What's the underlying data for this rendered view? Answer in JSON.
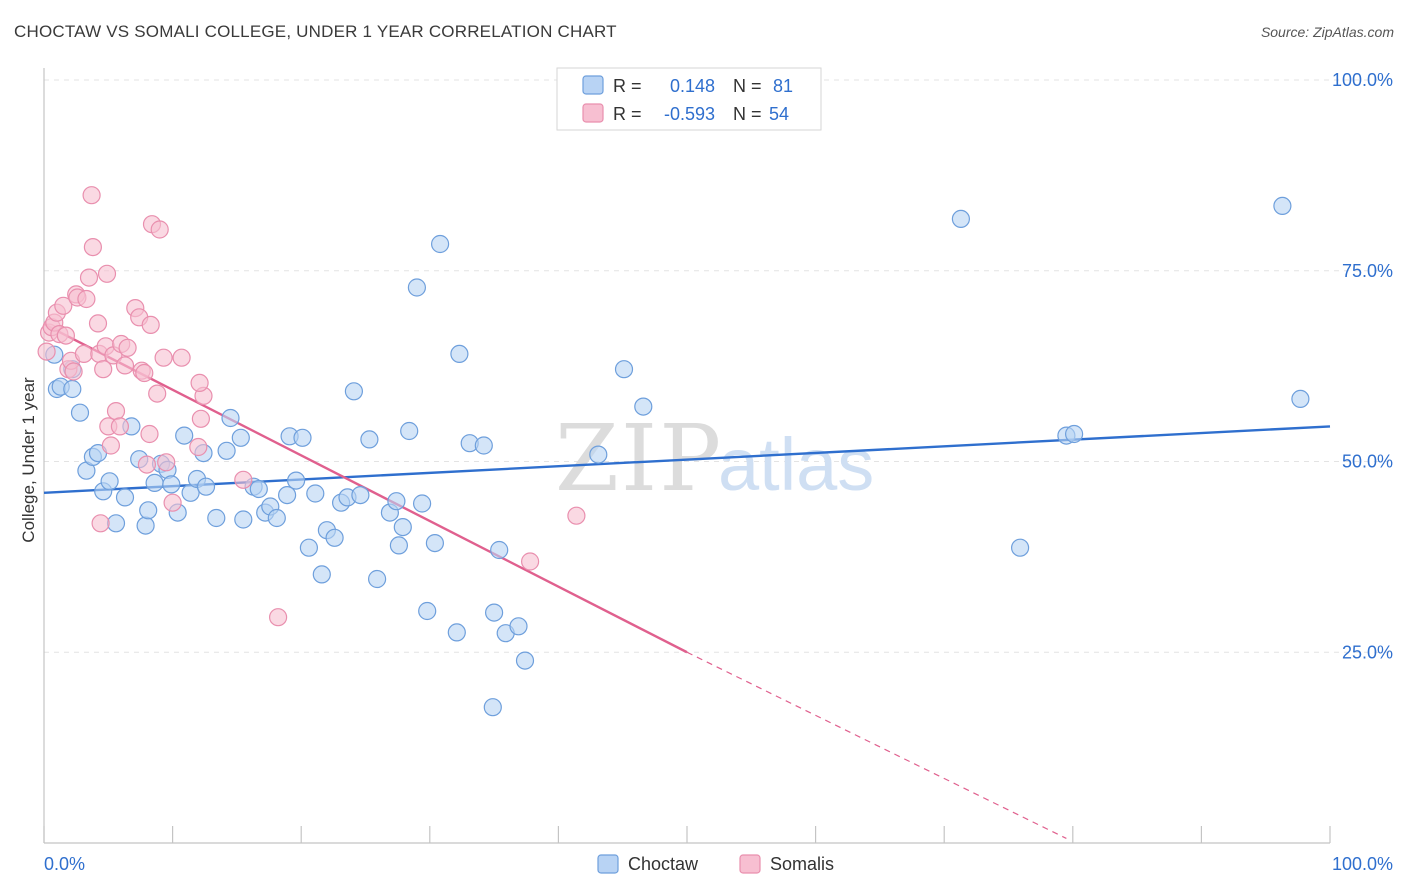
{
  "header": {
    "title": "CHOCTAW VS SOMALI COLLEGE, UNDER 1 YEAR CORRELATION CHART",
    "source": "Source: ZipAtlas.com"
  },
  "watermark": {
    "zip": "ZIP",
    "atlas": "atlas"
  },
  "colors": {
    "choctaw_fill": "#b8d3f4",
    "choctaw_stroke": "#6e9fdc",
    "choctaw_line": "#2f6fce",
    "somali_fill": "#f7bfd1",
    "somali_stroke": "#e98fae",
    "somali_line": "#e0608e",
    "value_text": "#2f6fce",
    "grid": "#e3e3e3"
  },
  "legend_top": {
    "rows": [
      {
        "swatch": "choctaw",
        "r_label": "R =",
        "r_value": "0.148",
        "n_label": "N =",
        "n_value": "81"
      },
      {
        "swatch": "somali",
        "r_label": "R =",
        "r_value": "-0.593",
        "n_label": "N =",
        "n_value": "54"
      }
    ]
  },
  "legend_bottom": {
    "items": [
      {
        "swatch": "choctaw",
        "label": "Choctaw"
      },
      {
        "swatch": "somali",
        "label": "Somalis"
      }
    ]
  },
  "chart_data": {
    "type": "scatter",
    "title": "CHOCTAW VS SOMALI COLLEGE, UNDER 1 YEAR CORRELATION CHART",
    "xlabel": "",
    "ylabel": "College, Under 1 year",
    "xlim": [
      0,
      100
    ],
    "ylim": [
      0,
      100
    ],
    "x_tick_labels": [
      "0.0%",
      "100.0%"
    ],
    "y_ticks": [
      25,
      50,
      75,
      100
    ],
    "y_tick_labels": [
      "25.0%",
      "50.0%",
      "75.0%",
      "100.0%"
    ],
    "grid": true,
    "legend_position": "top-center",
    "series": [
      {
        "name": "Choctaw",
        "color": "#6e9fdc",
        "r": 0.148,
        "n": 81,
        "trend": {
          "x": [
            0,
            100
          ],
          "y": [
            45.9,
            54.6
          ]
        },
        "points": [
          [
            0.8,
            64
          ],
          [
            1.0,
            59.5
          ],
          [
            1.3,
            59.8
          ],
          [
            2.2,
            62.1
          ],
          [
            2.2,
            59.5
          ],
          [
            2.8,
            56.4
          ],
          [
            3.3,
            48.8
          ],
          [
            3.8,
            50.6
          ],
          [
            4.2,
            51.1
          ],
          [
            4.6,
            46.1
          ],
          [
            5.1,
            47.4
          ],
          [
            5.6,
            41.9
          ],
          [
            6.3,
            45.3
          ],
          [
            6.8,
            54.6
          ],
          [
            7.4,
            50.3
          ],
          [
            7.9,
            41.6
          ],
          [
            8.1,
            43.6
          ],
          [
            8.6,
            47.2
          ],
          [
            9.1,
            49.7
          ],
          [
            9.6,
            48.9
          ],
          [
            9.9,
            47.0
          ],
          [
            10.4,
            43.3
          ],
          [
            10.9,
            53.4
          ],
          [
            11.4,
            45.9
          ],
          [
            11.9,
            47.7
          ],
          [
            12.4,
            51.1
          ],
          [
            12.6,
            46.7
          ],
          [
            13.4,
            42.6
          ],
          [
            14.2,
            51.4
          ],
          [
            14.5,
            55.7
          ],
          [
            15.3,
            53.1
          ],
          [
            15.5,
            42.4
          ],
          [
            16.3,
            46.7
          ],
          [
            16.7,
            46.4
          ],
          [
            17.2,
            43.3
          ],
          [
            17.6,
            44.1
          ],
          [
            18.1,
            42.6
          ],
          [
            18.9,
            45.6
          ],
          [
            19.1,
            53.3
          ],
          [
            19.6,
            47.5
          ],
          [
            20.1,
            53.1
          ],
          [
            20.6,
            38.7
          ],
          [
            21.1,
            45.8
          ],
          [
            21.6,
            35.2
          ],
          [
            22.0,
            41.0
          ],
          [
            22.6,
            40.0
          ],
          [
            23.1,
            44.6
          ],
          [
            23.6,
            45.3
          ],
          [
            24.1,
            59.2
          ],
          [
            24.6,
            45.6
          ],
          [
            25.3,
            52.9
          ],
          [
            25.9,
            34.6
          ],
          [
            26.9,
            43.3
          ],
          [
            27.4,
            44.8
          ],
          [
            27.6,
            39.0
          ],
          [
            27.9,
            41.4
          ],
          [
            28.4,
            54.0
          ],
          [
            29.0,
            72.8
          ],
          [
            29.4,
            44.5
          ],
          [
            29.8,
            30.4
          ],
          [
            30.4,
            39.3
          ],
          [
            30.8,
            78.5
          ],
          [
            32.1,
            27.6
          ],
          [
            32.3,
            64.1
          ],
          [
            33.1,
            52.4
          ],
          [
            34.2,
            52.1
          ],
          [
            35.0,
            30.2
          ],
          [
            35.4,
            38.4
          ],
          [
            35.9,
            27.5
          ],
          [
            36.9,
            28.4
          ],
          [
            37.4,
            23.9
          ],
          [
            34.9,
            17.8
          ],
          [
            43.1,
            50.9
          ],
          [
            45.1,
            62.1
          ],
          [
            46.6,
            57.2
          ],
          [
            71.3,
            81.8
          ],
          [
            75.9,
            38.7
          ],
          [
            79.5,
            53.4
          ],
          [
            80.1,
            53.6
          ],
          [
            96.3,
            83.5
          ],
          [
            97.7,
            58.2
          ]
        ]
      },
      {
        "name": "Somalis",
        "color": "#e98fae",
        "r": -0.593,
        "n": 54,
        "trend": {
          "x": [
            0,
            50
          ],
          "y": [
            68.0,
            25.0
          ]
        },
        "trend_extended": {
          "x": [
            50,
            79.5
          ],
          "y": [
            25.0,
            0.6
          ]
        },
        "points": [
          [
            0.2,
            64.4
          ],
          [
            0.4,
            66.9
          ],
          [
            0.6,
            67.6
          ],
          [
            0.8,
            68.2
          ],
          [
            1.0,
            69.5
          ],
          [
            1.2,
            66.7
          ],
          [
            1.5,
            70.4
          ],
          [
            1.7,
            66.5
          ],
          [
            1.9,
            62.1
          ],
          [
            2.1,
            63.2
          ],
          [
            2.3,
            61.8
          ],
          [
            2.5,
            71.9
          ],
          [
            2.6,
            71.5
          ],
          [
            3.1,
            64.1
          ],
          [
            3.3,
            71.3
          ],
          [
            3.5,
            74.1
          ],
          [
            3.8,
            78.1
          ],
          [
            3.7,
            84.9
          ],
          [
            4.2,
            68.1
          ],
          [
            4.3,
            64.1
          ],
          [
            4.4,
            41.9
          ],
          [
            4.6,
            62.1
          ],
          [
            4.8,
            65.1
          ],
          [
            4.9,
            74.6
          ],
          [
            5.0,
            54.6
          ],
          [
            5.2,
            52.1
          ],
          [
            5.4,
            63.9
          ],
          [
            5.6,
            56.6
          ],
          [
            5.9,
            54.6
          ],
          [
            6.0,
            65.4
          ],
          [
            6.3,
            62.6
          ],
          [
            6.5,
            64.9
          ],
          [
            7.1,
            70.1
          ],
          [
            7.4,
            68.9
          ],
          [
            7.6,
            61.9
          ],
          [
            7.8,
            61.6
          ],
          [
            8.0,
            49.6
          ],
          [
            8.2,
            53.6
          ],
          [
            8.3,
            67.9
          ],
          [
            8.4,
            81.1
          ],
          [
            8.8,
            58.9
          ],
          [
            9.0,
            80.4
          ],
          [
            9.3,
            63.6
          ],
          [
            9.5,
            49.9
          ],
          [
            10.0,
            44.6
          ],
          [
            10.7,
            63.6
          ],
          [
            12.0,
            51.9
          ],
          [
            12.4,
            58.6
          ],
          [
            12.2,
            55.6
          ],
          [
            15.5,
            47.6
          ],
          [
            18.2,
            29.6
          ],
          [
            37.8,
            36.9
          ],
          [
            41.4,
            42.9
          ],
          [
            12.1,
            60.3
          ]
        ]
      }
    ]
  }
}
